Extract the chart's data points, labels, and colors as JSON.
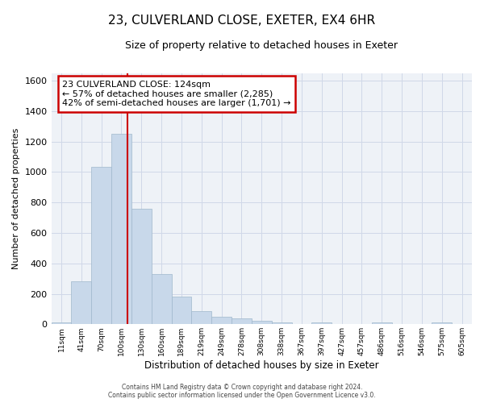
{
  "title": "23, CULVERLAND CLOSE, EXETER, EX4 6HR",
  "subtitle": "Size of property relative to detached houses in Exeter",
  "xlabel": "Distribution of detached houses by size in Exeter",
  "ylabel": "Number of detached properties",
  "bin_labels": [
    "11sqm",
    "41sqm",
    "70sqm",
    "100sqm",
    "130sqm",
    "160sqm",
    "189sqm",
    "219sqm",
    "249sqm",
    "278sqm",
    "308sqm",
    "338sqm",
    "367sqm",
    "397sqm",
    "427sqm",
    "457sqm",
    "486sqm",
    "516sqm",
    "546sqm",
    "575sqm",
    "605sqm"
  ],
  "bar_heights": [
    10,
    280,
    1035,
    1250,
    760,
    330,
    180,
    88,
    48,
    38,
    22,
    10,
    0,
    10,
    0,
    0,
    10,
    0,
    0,
    10,
    0
  ],
  "bar_color": "#c8d8ea",
  "bar_edge_color": "#a0b8cc",
  "grid_color": "#d0d8e8",
  "background_color": "#eef2f7",
  "marker_label": "23 CULVERLAND CLOSE: 124sqm",
  "annotation_line1": "← 57% of detached houses are smaller (2,285)",
  "annotation_line2": "42% of semi-detached houses are larger (1,701) →",
  "annotation_box_color": "#ffffff",
  "annotation_box_edge_color": "#cc0000",
  "marker_line_color": "#cc0000",
  "ylim": [
    0,
    1650
  ],
  "yticks": [
    0,
    200,
    400,
    600,
    800,
    1000,
    1200,
    1400,
    1600
  ],
  "footer_line1": "Contains HM Land Registry data © Crown copyright and database right 2024.",
  "footer_line2": "Contains public sector information licensed under the Open Government Licence v3.0."
}
